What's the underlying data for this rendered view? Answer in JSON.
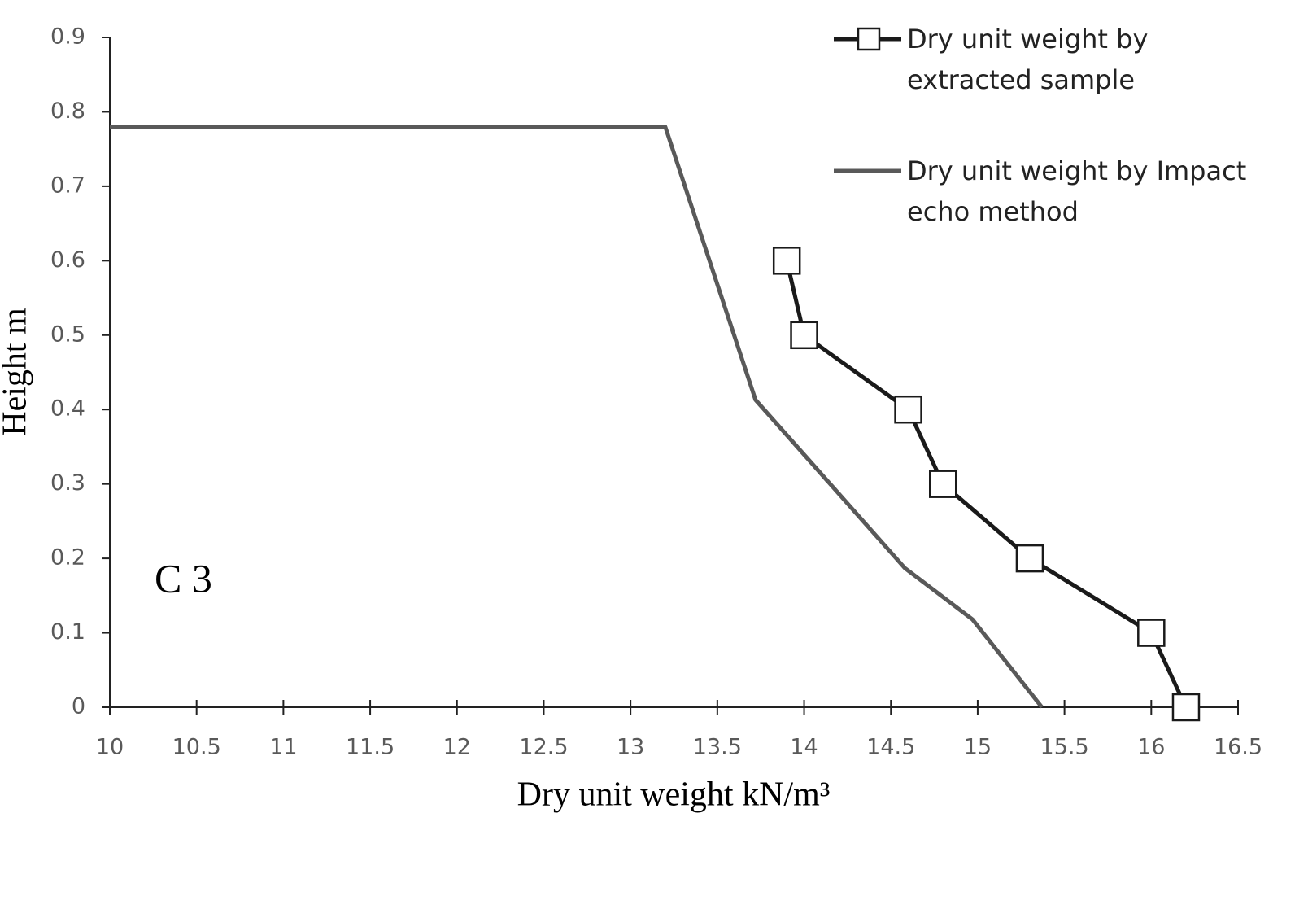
{
  "chart_data": {
    "type": "line",
    "xlabel": "Dry unit weight  kN/m³",
    "ylabel": "Height  m",
    "annotation": "C 3",
    "xlim": [
      10,
      16.5
    ],
    "xticks": [
      10,
      10.5,
      11,
      11.5,
      12,
      12.5,
      13,
      13.5,
      14,
      14.5,
      15,
      15.5,
      16,
      16.5
    ],
    "ylim": [
      0,
      0.9
    ],
    "yticks": [
      0,
      0.1,
      0.2,
      0.3,
      0.4,
      0.5,
      0.6,
      0.7,
      0.8,
      0.9
    ],
    "legend": "top-right",
    "series": [
      {
        "name": "Dry unit weight by extracted sample",
        "color": "#1a1a1a",
        "marker": "square",
        "x": [
          13.9,
          14,
          14.6,
          14.8,
          15.3,
          16,
          16.2
        ],
        "values": [
          0.6,
          0.5,
          0.4,
          0.3,
          0.2,
          0.1,
          0
        ]
      },
      {
        "name": "Dry unit weight by Impact echo method",
        "color": "#595959",
        "x": [
          10,
          13.2,
          13.72,
          14.58,
          14.97,
          15.37
        ],
        "values": [
          0.78,
          0.78,
          0.413,
          0.187,
          0.118,
          0
        ]
      }
    ]
  }
}
